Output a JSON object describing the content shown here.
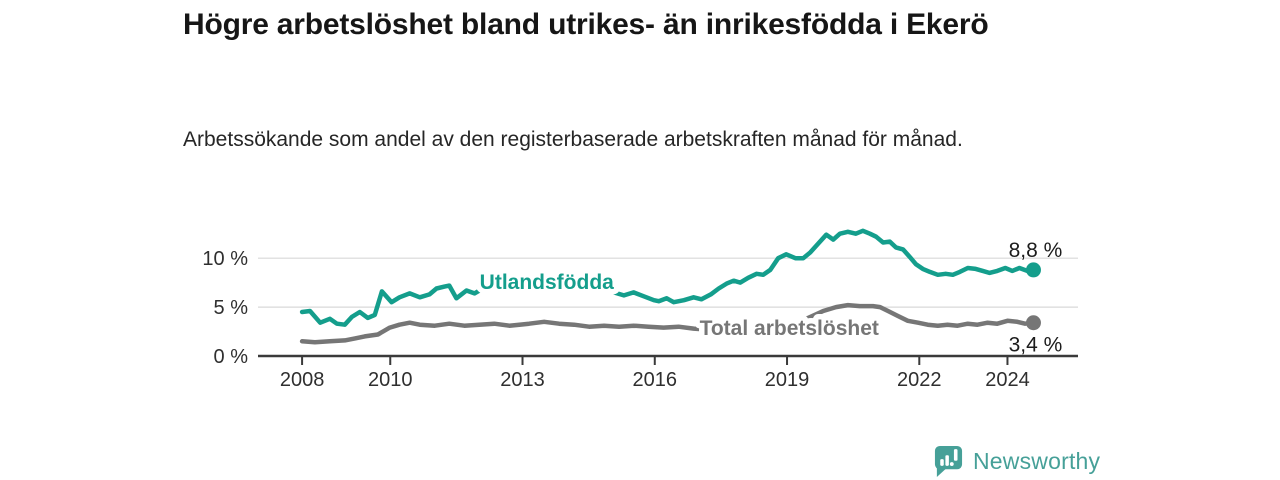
{
  "header": {
    "title": "Högre arbetslöshet bland utrikes- än inrikesfödda i Ekerö",
    "subtitle": "Arbetssökande som andel av den registerbaserade arbetskraften månad för månad."
  },
  "logo": {
    "text": "Newsworthy"
  },
  "colors": {
    "teal": "#149E8C",
    "teal_logo": "#46A098",
    "gray": "#767676",
    "grid": "#D9D9D9",
    "axis": "#3A3A3A"
  },
  "chart_data": {
    "type": "line",
    "title": "Högre arbetslöshet bland utrikes- än inrikesfödda i Ekerö",
    "subtitle": "Arbetssökande som andel av den registerbaserade arbetskraften månad för månad.",
    "unit": "%",
    "xlim": [
      2007.0,
      2025.6
    ],
    "ylim": [
      0,
      13.7
    ],
    "grid": "horizontal",
    "legend": "inline-labels",
    "xticks": [
      2008,
      2010,
      2013,
      2016,
      2019,
      2022,
      2024
    ],
    "yticks": [
      {
        "value": 0,
        "label": "0 %"
      },
      {
        "value": 5,
        "label": "5 %"
      },
      {
        "value": 10,
        "label": "10 %"
      }
    ],
    "series": [
      {
        "name": "Utlandsfödda",
        "color": "#149E8C",
        "end_label": "8,8 %",
        "end_value": 8.8,
        "end_label_side": "above",
        "label_pos": [
          2013.55,
          7.65
        ],
        "points": [
          [
            2008.0,
            4.5
          ],
          [
            2008.18,
            4.6
          ],
          [
            2008.41,
            3.4
          ],
          [
            2008.63,
            3.8
          ],
          [
            2008.79,
            3.3
          ],
          [
            2008.97,
            3.2
          ],
          [
            2009.13,
            4.0
          ],
          [
            2009.31,
            4.5
          ],
          [
            2009.49,
            3.9
          ],
          [
            2009.65,
            4.2
          ],
          [
            2009.81,
            6.6
          ],
          [
            2010.03,
            5.5
          ],
          [
            2010.21,
            6.0
          ],
          [
            2010.44,
            6.4
          ],
          [
            2010.67,
            6.0
          ],
          [
            2010.89,
            6.3
          ],
          [
            2011.05,
            6.9
          ],
          [
            2011.23,
            7.1
          ],
          [
            2011.34,
            7.2
          ],
          [
            2011.5,
            5.9
          ],
          [
            2011.73,
            6.7
          ],
          [
            2011.91,
            6.4
          ],
          [
            2012.14,
            7.0
          ],
          [
            2012.36,
            7.1
          ],
          [
            2012.59,
            6.9
          ],
          [
            2012.81,
            7.2
          ],
          [
            2013.04,
            7.0
          ],
          [
            2013.27,
            7.2
          ],
          [
            2013.49,
            7.1
          ],
          [
            2013.72,
            7.3
          ],
          [
            2013.94,
            7.1
          ],
          [
            2014.17,
            7.0
          ],
          [
            2014.4,
            7.2
          ],
          [
            2014.62,
            6.9
          ],
          [
            2014.85,
            7.0
          ],
          [
            2015.07,
            6.5
          ],
          [
            2015.3,
            6.2
          ],
          [
            2015.52,
            6.5
          ],
          [
            2015.75,
            6.1
          ],
          [
            2015.98,
            5.7
          ],
          [
            2016.09,
            5.6
          ],
          [
            2016.27,
            5.9
          ],
          [
            2016.43,
            5.5
          ],
          [
            2016.66,
            5.7
          ],
          [
            2016.88,
            6.0
          ],
          [
            2017.06,
            5.8
          ],
          [
            2017.27,
            6.3
          ],
          [
            2017.45,
            6.9
          ],
          [
            2017.63,
            7.4
          ],
          [
            2017.79,
            7.7
          ],
          [
            2017.94,
            7.5
          ],
          [
            2018.12,
            8.0
          ],
          [
            2018.31,
            8.4
          ],
          [
            2018.46,
            8.3
          ],
          [
            2018.62,
            8.8
          ],
          [
            2018.71,
            9.4
          ],
          [
            2018.8,
            10.0
          ],
          [
            2018.98,
            10.4
          ],
          [
            2019.19,
            10.0
          ],
          [
            2019.37,
            10.0
          ],
          [
            2019.53,
            10.6
          ],
          [
            2019.71,
            11.5
          ],
          [
            2019.89,
            12.4
          ],
          [
            2020.05,
            11.9
          ],
          [
            2020.2,
            12.5
          ],
          [
            2020.38,
            12.7
          ],
          [
            2020.56,
            12.5
          ],
          [
            2020.72,
            12.8
          ],
          [
            2020.88,
            12.5
          ],
          [
            2021.02,
            12.2
          ],
          [
            2021.18,
            11.6
          ],
          [
            2021.33,
            11.7
          ],
          [
            2021.47,
            11.1
          ],
          [
            2021.63,
            10.9
          ],
          [
            2021.79,
            10.1
          ],
          [
            2021.92,
            9.4
          ],
          [
            2022.08,
            8.9
          ],
          [
            2022.24,
            8.6
          ],
          [
            2022.42,
            8.3
          ],
          [
            2022.6,
            8.4
          ],
          [
            2022.76,
            8.3
          ],
          [
            2022.92,
            8.6
          ],
          [
            2023.1,
            9.0
          ],
          [
            2023.28,
            8.9
          ],
          [
            2023.44,
            8.7
          ],
          [
            2023.59,
            8.5
          ],
          [
            2023.77,
            8.7
          ],
          [
            2023.95,
            9.0
          ],
          [
            2024.11,
            8.7
          ],
          [
            2024.27,
            9.0
          ],
          [
            2024.45,
            8.7
          ],
          [
            2024.59,
            8.8
          ]
        ]
      },
      {
        "name": "Total arbetslöshet",
        "color": "#767676",
        "end_label": "3,4 %",
        "end_value": 3.4,
        "end_label_side": "below",
        "label_pos": [
          2019.05,
          2.95
        ],
        "points": [
          [
            2008.0,
            1.5
          ],
          [
            2008.29,
            1.4
          ],
          [
            2008.63,
            1.5
          ],
          [
            2008.97,
            1.6
          ],
          [
            2009.2,
            1.8
          ],
          [
            2009.42,
            2.0
          ],
          [
            2009.72,
            2.2
          ],
          [
            2009.99,
            2.9
          ],
          [
            2010.21,
            3.2
          ],
          [
            2010.44,
            3.4
          ],
          [
            2010.67,
            3.2
          ],
          [
            2011.01,
            3.1
          ],
          [
            2011.34,
            3.3
          ],
          [
            2011.68,
            3.1
          ],
          [
            2012.02,
            3.2
          ],
          [
            2012.36,
            3.3
          ],
          [
            2012.7,
            3.1
          ],
          [
            2012.93,
            3.2
          ],
          [
            2013.15,
            3.3
          ],
          [
            2013.49,
            3.5
          ],
          [
            2013.83,
            3.3
          ],
          [
            2014.17,
            3.2
          ],
          [
            2014.51,
            3.0
          ],
          [
            2014.85,
            3.1
          ],
          [
            2015.19,
            3.0
          ],
          [
            2015.52,
            3.1
          ],
          [
            2015.86,
            3.0
          ],
          [
            2016.2,
            2.9
          ],
          [
            2016.54,
            3.0
          ],
          [
            2016.88,
            2.8
          ],
          [
            2017.22,
            2.7
          ],
          [
            2017.45,
            2.6
          ],
          [
            2017.79,
            2.7
          ],
          [
            2018.12,
            2.8
          ],
          [
            2018.46,
            3.0
          ],
          [
            2018.8,
            3.2
          ],
          [
            2019.14,
            3.5
          ],
          [
            2019.48,
            3.9
          ],
          [
            2019.82,
            4.6
          ],
          [
            2020.11,
            5.0
          ],
          [
            2020.38,
            5.2
          ],
          [
            2020.65,
            5.1
          ],
          [
            2020.95,
            5.1
          ],
          [
            2021.11,
            5.0
          ],
          [
            2021.29,
            4.6
          ],
          [
            2021.51,
            4.1
          ],
          [
            2021.74,
            3.6
          ],
          [
            2021.97,
            3.4
          ],
          [
            2022.19,
            3.2
          ],
          [
            2022.42,
            3.1
          ],
          [
            2022.64,
            3.2
          ],
          [
            2022.87,
            3.1
          ],
          [
            2023.1,
            3.3
          ],
          [
            2023.32,
            3.2
          ],
          [
            2023.55,
            3.4
          ],
          [
            2023.77,
            3.3
          ],
          [
            2024.0,
            3.6
          ],
          [
            2024.22,
            3.5
          ],
          [
            2024.4,
            3.3
          ],
          [
            2024.59,
            3.4
          ]
        ]
      }
    ]
  }
}
